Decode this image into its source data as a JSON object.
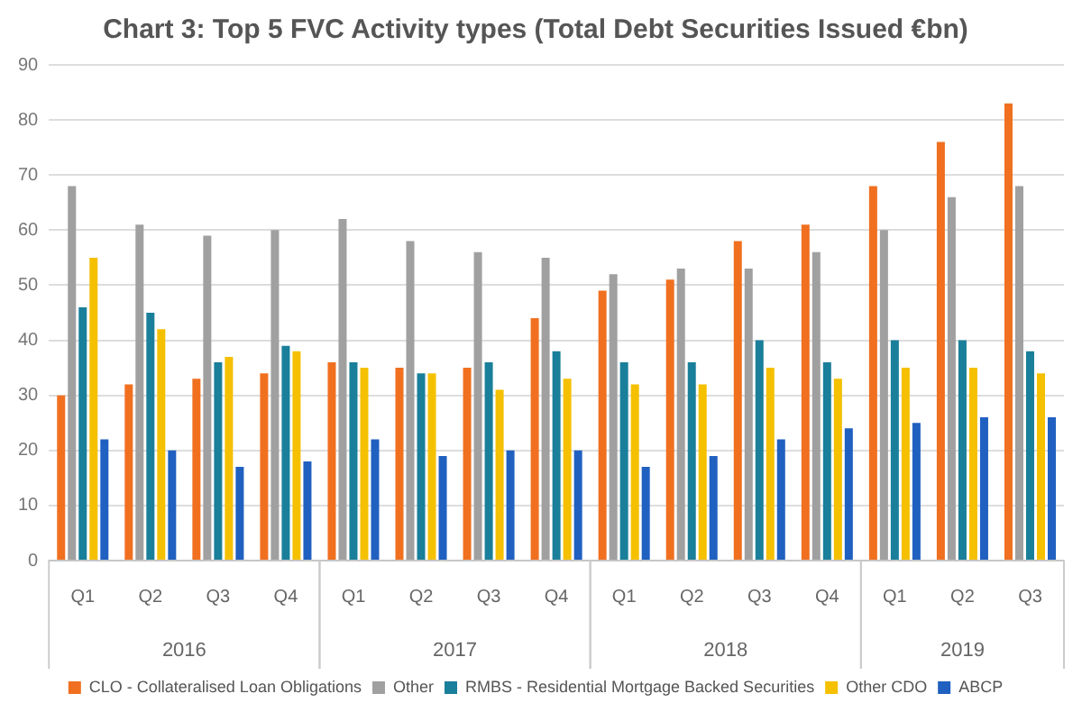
{
  "chart_data": {
    "type": "bar",
    "title": "Chart 3: Top 5 FVC Activity types (Total Debt Securities Issued €bn)",
    "categories": [
      "Q1",
      "Q2",
      "Q3",
      "Q4",
      "Q1",
      "Q2",
      "Q3",
      "Q4",
      "Q1",
      "Q2",
      "Q3",
      "Q4",
      "Q1",
      "Q2",
      "Q3"
    ],
    "series": [
      {
        "name": "CLO - Collateralised Loan Obligations",
        "color": "#f07020",
        "values": [
          30,
          32,
          33,
          34,
          36,
          35,
          35,
          44,
          49,
          51,
          58,
          61,
          68,
          76,
          83
        ]
      },
      {
        "name": "Other",
        "color": "#a0a0a0",
        "values": [
          68,
          61,
          59,
          60,
          62,
          58,
          56,
          55,
          52,
          53,
          53,
          56,
          60,
          66,
          68
        ]
      },
      {
        "name": "RMBS - Residential Mortgage Backed Securities",
        "color": "#1a7f9a",
        "values": [
          46,
          45,
          36,
          39,
          36,
          34,
          36,
          38,
          36,
          36,
          40,
          36,
          40,
          40,
          38
        ]
      },
      {
        "name": "Other CDO",
        "color": "#f5c000",
        "values": [
          55,
          42,
          37,
          38,
          35,
          34,
          31,
          33,
          32,
          32,
          35,
          33,
          35,
          35,
          34
        ]
      },
      {
        "name": "ABCP",
        "color": "#2060c0",
        "values": [
          22,
          20,
          17,
          18,
          22,
          19,
          20,
          20,
          17,
          19,
          22,
          24,
          25,
          26,
          26
        ]
      }
    ],
    "annotations": [
      "2016",
      "2017",
      "2018",
      "2019"
    ],
    "ylim": [
      0,
      90
    ],
    "yticks": [
      0,
      10,
      20,
      30,
      40,
      50,
      60,
      70,
      80,
      90
    ],
    "grid": "y",
    "legend": "bottom"
  }
}
